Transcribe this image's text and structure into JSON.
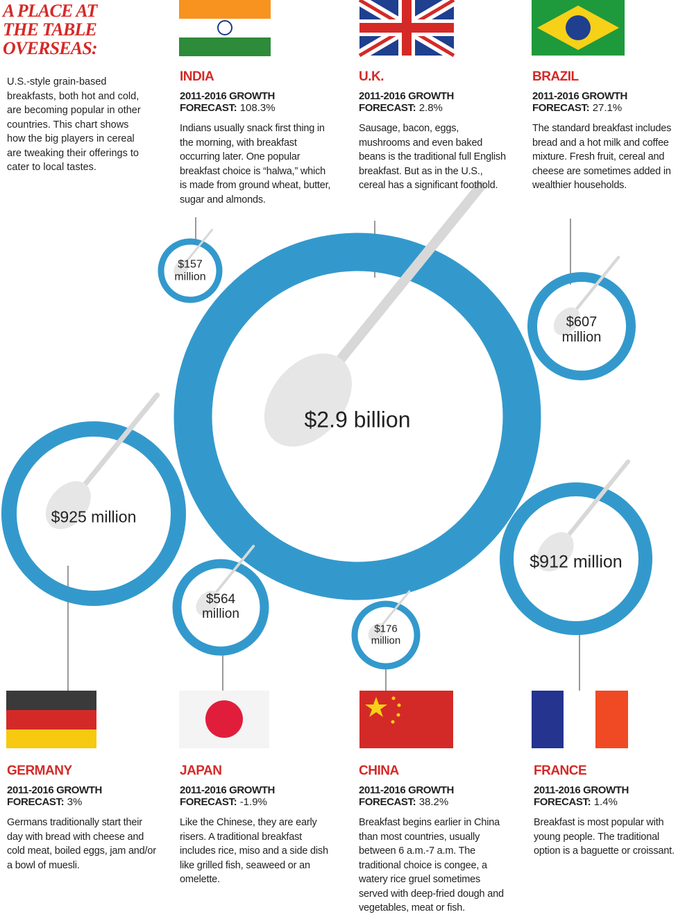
{
  "header": {
    "title": "A PLACE AT THE TABLE OVERSEAS:",
    "intro": "U.S.-style grain-based breakfasts, both hot and cold, are becoming popular in other countries. This chart shows how the big players in cereal are tweaking their offerings to cater to local tastes."
  },
  "countries": [
    {
      "name": "INDIA",
      "growth_label": "2011-2016 GROWTH",
      "forecast_label": "FORECAST:",
      "forecast": "108.3%",
      "description": "Indians usually snack first thing in the morning, with breakfast occurring later. One popular breakfast choice is “halwa,” which is made from ground wheat, butter, sugar and almonds.",
      "market": "$157 million"
    },
    {
      "name": "U.K.",
      "growth_label": "2011-2016 GROWTH",
      "forecast_label": "FORECAST:",
      "forecast": "2.8%",
      "description": "Sausage, bacon, eggs, mushrooms and even baked beans is the traditional full English breakfast. But as in the U.S., cereal has a significant foothold.",
      "market": "$2.9 billion"
    },
    {
      "name": "BRAZIL",
      "growth_label": "2011-2016 GROWTH",
      "forecast_label": "FORECAST:",
      "forecast": "27.1%",
      "description": "The standard breakfast includes bread and a hot milk and coffee mixture. Fresh fruit, cereal and cheese are sometimes added in wealthier households.",
      "market": "$607 million"
    },
    {
      "name": "GERMANY",
      "growth_label": "2011-2016 GROWTH",
      "forecast_label": "FORECAST:",
      "forecast": "3%",
      "description": "Germans traditionally start their day with bread with cheese and cold meat, boiled eggs, jam and/or a bowl of muesli.",
      "market": "$925 million"
    },
    {
      "name": "JAPAN",
      "growth_label": "2011-2016 GROWTH",
      "forecast_label": "FORECAST:",
      "forecast": "-1.9%",
      "description": "Like the Chinese, they are early risers. A traditional breakfast includes rice, miso and a side dish like grilled fish, seaweed or an omelette.",
      "market": "$564 million"
    },
    {
      "name": "CHINA",
      "growth_label": "2011-2016 GROWTH",
      "forecast_label": "FORECAST:",
      "forecast": "38.2%",
      "description": "Breakfast begins earlier in China than most countries, usually between 6 a.m.-7 a.m. The traditional choice is congee, a watery rice gruel sometimes served with deep-fried dough and vegetables, meat or fish.",
      "market": "$176 million"
    },
    {
      "name": "FRANCE",
      "growth_label": "2011-2016 GROWTH",
      "forecast_label": "FORECAST:",
      "forecast": "1.4%",
      "description": "Breakfast is most popular with young people. The traditional option is a baguette or croissant.",
      "market": "$912 million"
    }
  ]
}
